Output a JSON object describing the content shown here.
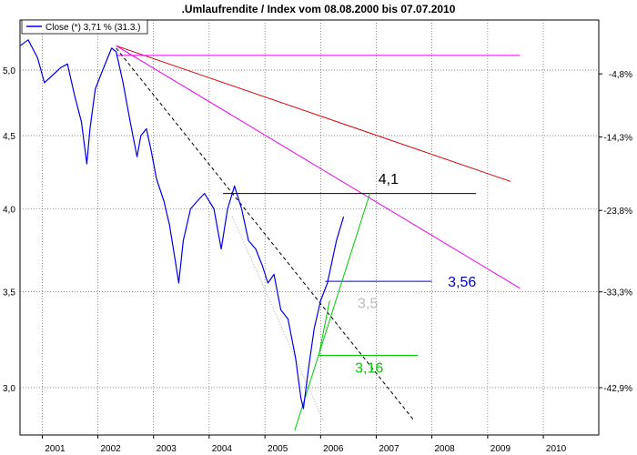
{
  "chart_data": {
    "type": "line",
    "title": ".Umlaufrendite / Index vom 08.08.2000 bis 07.07.2010",
    "legend": {
      "label": "Close (*) 3,71 % (31.3.)",
      "placement": "top-left"
    },
    "scale": "log",
    "x_axis": {
      "min": "2000-08-08",
      "max": "2010-12-31",
      "ticks": [
        {
          "date": "2001-01-01",
          "label": "2001"
        },
        {
          "date": "2002-01-01",
          "label": "2002"
        },
        {
          "date": "2003-01-01",
          "label": "2003"
        },
        {
          "date": "2004-01-01",
          "label": "2004"
        },
        {
          "date": "2005-01-01",
          "label": "2005"
        },
        {
          "date": "2006-01-01",
          "label": "2006"
        },
        {
          "date": "2007-01-01",
          "label": "2007"
        },
        {
          "date": "2008-01-01",
          "label": "2008"
        },
        {
          "date": "2009-01-01",
          "label": "2009"
        },
        {
          "date": "2010-01-01",
          "label": "2010"
        }
      ]
    },
    "y_left": {
      "min": 2.78,
      "max": 5.42,
      "ticks": [
        {
          "value": 5.0,
          "label": "5,0"
        },
        {
          "value": 4.5,
          "label": "4,5"
        },
        {
          "value": 4.0,
          "label": "4,0"
        },
        {
          "value": 3.5,
          "label": "3,5"
        },
        {
          "value": 3.0,
          "label": "3,0"
        }
      ]
    },
    "y_right": {
      "ticks": [
        {
          "value": 4.97,
          "label": "-4,8%"
        },
        {
          "value": 4.49,
          "label": "-14,3%"
        },
        {
          "value": 3.99,
          "label": "-23,8%"
        },
        {
          "value": 3.5,
          "label": "-33,3%"
        },
        {
          "value": 3.0,
          "label": "-42,9%"
        }
      ]
    },
    "grid": true,
    "series": [
      {
        "color": "#0000ee",
        "x": [
          "2000-08-08",
          "2000-10-01",
          "2000-12-01",
          "2001-01-15",
          "2001-03-01",
          "2001-05-01",
          "2001-06-15",
          "2001-08-01",
          "2001-09-15",
          "2001-10-20",
          "2001-11-10",
          "2001-12-15",
          "2002-02-01",
          "2002-04-01",
          "2002-05-01",
          "2002-06-15",
          "2002-08-01",
          "2002-09-15",
          "2002-10-10",
          "2002-11-15",
          "2002-12-15",
          "2003-01-20",
          "2003-03-10",
          "2003-04-15",
          "2003-05-20",
          "2003-06-15",
          "2003-07-15",
          "2003-09-01",
          "2003-10-15",
          "2003-12-01",
          "2004-02-01",
          "2004-03-20",
          "2004-05-01",
          "2004-06-15",
          "2004-08-01",
          "2004-09-15",
          "2004-11-01",
          "2004-12-15",
          "2005-01-20",
          "2005-03-01",
          "2005-04-15",
          "2005-06-01",
          "2005-07-20",
          "2005-08-25",
          "2005-09-10",
          "2005-10-15",
          "2005-11-20",
          "2006-01-01",
          "2006-02-15",
          "2006-04-15",
          "2006-06-01"
        ],
        "y": [
          5.2,
          5.25,
          5.1,
          4.9,
          4.95,
          5.02,
          5.05,
          4.8,
          4.6,
          4.3,
          4.55,
          4.85,
          5.0,
          5.18,
          5.15,
          4.9,
          4.6,
          4.35,
          4.5,
          4.55,
          4.4,
          4.2,
          4.05,
          3.9,
          3.7,
          3.55,
          3.8,
          4.0,
          4.05,
          4.1,
          4.0,
          3.75,
          4.0,
          4.15,
          4.0,
          3.8,
          3.75,
          3.65,
          3.55,
          3.6,
          3.4,
          3.35,
          3.15,
          2.95,
          2.9,
          3.1,
          3.3,
          3.45,
          3.55,
          3.8,
          3.95
        ]
      }
    ],
    "lines": [
      {
        "color": "#dd0000",
        "style": "solid",
        "x": [
          "2002-05-01",
          "2009-06-01"
        ],
        "y": [
          5.2,
          4.18
        ]
      },
      {
        "color": "#ee00ee",
        "style": "solid",
        "x": [
          "2002-05-01",
          "2009-08-01"
        ],
        "y": [
          5.2,
          3.52
        ]
      },
      {
        "color": "#ee00ee",
        "style": "solid",
        "x": [
          "2002-05-01",
          "2009-08-01"
        ],
        "y": [
          5.12,
          5.12
        ]
      },
      {
        "color": "#000000",
        "style": "dashed",
        "x": [
          "2002-05-01",
          "2007-09-01"
        ],
        "y": [
          5.18,
          2.85
        ]
      },
      {
        "color": "#aaaaaa",
        "style": "dotted",
        "x": [
          "2004-06-01",
          "2006-01-15"
        ],
        "y": [
          3.95,
          2.85
        ]
      },
      {
        "color": "#000000",
        "style": "solid",
        "x": [
          "2004-04-01",
          "2008-10-15"
        ],
        "y": [
          4.1,
          4.1
        ]
      },
      {
        "color": "#0000ee",
        "style": "solid",
        "x": [
          "2006-02-01",
          "2008-01-01"
        ],
        "y": [
          3.56,
          3.56
        ]
      },
      {
        "color": "#00cc00",
        "style": "solid",
        "x": [
          "2005-12-20",
          "2007-10-01"
        ],
        "y": [
          3.16,
          3.16
        ]
      },
      {
        "color": "#00cc00",
        "style": "solid",
        "x": [
          "2005-07-15",
          "2006-11-20"
        ],
        "y": [
          2.8,
          4.1
        ]
      },
      {
        "color": "#00cc00",
        "style": "solid",
        "x": [
          "2005-12-20",
          "2006-03-01"
        ],
        "y": [
          3.16,
          3.45
        ]
      }
    ],
    "annotations": [
      {
        "text": "4,1",
        "color": "#000000",
        "x": "2007-01-15",
        "y": 4.2
      },
      {
        "text": "3,56",
        "color": "#0000cc",
        "x": "2008-04-15",
        "y": 3.56
      },
      {
        "text": "3,5",
        "color": "#bbbbbb",
        "x": "2006-09-01",
        "y": 3.44
      },
      {
        "text": "3,16",
        "color": "#00cc00",
        "x": "2006-08-15",
        "y": 3.1
      }
    ]
  }
}
